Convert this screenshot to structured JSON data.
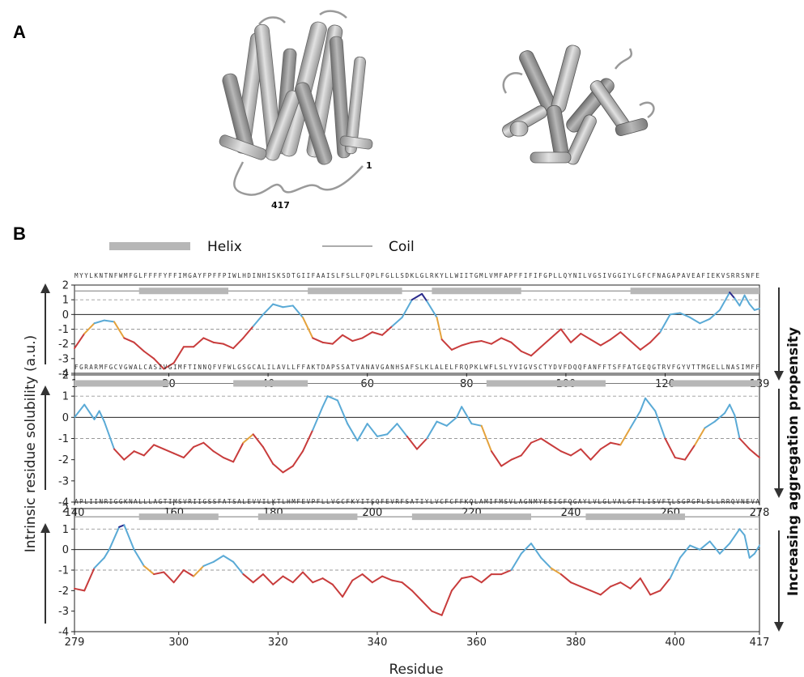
{
  "panel_a": {
    "letter": "A",
    "label_n_term": "1",
    "label_c_term": "417"
  },
  "panel_b": {
    "letter": "B",
    "legend": {
      "helix": "Helix",
      "coil": "Coil"
    },
    "colors": {
      "helix_bar": "#b7b7b7",
      "coil_line": "#7a7a7a",
      "low": "#c83c3c",
      "mid": "#e4a23c",
      "high": "#5aaad6",
      "very_high": "#2a2a8c"
    }
  },
  "chart_data": {
    "type": "line",
    "ylabel": "Intrinsic residue solubility (a.u.)",
    "xlabel": "Residue",
    "right_label": "Increasing aggregation propensity",
    "yticks": [
      -4,
      -3,
      -2,
      -1,
      0,
      1,
      2
    ],
    "ylim": [
      -4,
      2
    ],
    "dashed_lines": [
      -1,
      1
    ],
    "panels": [
      {
        "range": [
          1,
          139
        ],
        "xticks": [
          1,
          20,
          40,
          60,
          80,
          100,
          120,
          139
        ],
        "sequence": "MYYLKNTNFWMFGLFFFFYFFIMGAYFPFFPIWLHDINHISKSDTGIIFAAISLFSLLFQPLFGLLSDKLGLRKYLLWIITGMLVMFAPFFIFIFGPLLQYNILVGSIVGGIYLGFCFNAGAPAVEAFIEKVSRRSNFE",
        "helices": [
          [
            14,
            32
          ],
          [
            48,
            67
          ],
          [
            73,
            91
          ],
          [
            113,
            139
          ]
        ],
        "profile": [
          [
            1,
            -2.3
          ],
          [
            3,
            -1.3
          ],
          [
            5,
            -0.6
          ],
          [
            7,
            -0.4
          ],
          [
            9,
            -0.5
          ],
          [
            11,
            -1.6
          ],
          [
            13,
            -1.9
          ],
          [
            15,
            -2.5
          ],
          [
            17,
            -3.0
          ],
          [
            19,
            -3.7
          ],
          [
            21,
            -3.3
          ],
          [
            23,
            -2.2
          ],
          [
            25,
            -2.2
          ],
          [
            27,
            -1.6
          ],
          [
            29,
            -1.9
          ],
          [
            31,
            -2.0
          ],
          [
            33,
            -2.3
          ],
          [
            35,
            -1.6
          ],
          [
            37,
            -0.8
          ],
          [
            39,
            0.0
          ],
          [
            41,
            0.7
          ],
          [
            43,
            0.5
          ],
          [
            45,
            0.6
          ],
          [
            47,
            -0.2
          ],
          [
            49,
            -1.6
          ],
          [
            51,
            -1.9
          ],
          [
            53,
            -2.0
          ],
          [
            55,
            -1.4
          ],
          [
            57,
            -1.8
          ],
          [
            59,
            -1.6
          ],
          [
            61,
            -1.2
          ],
          [
            63,
            -1.4
          ],
          [
            65,
            -0.8
          ],
          [
            67,
            -0.2
          ],
          [
            69,
            1.0
          ],
          [
            71,
            1.4
          ],
          [
            72,
            0.9
          ],
          [
            74,
            -0.2
          ],
          [
            75,
            -1.7
          ],
          [
            77,
            -2.4
          ],
          [
            79,
            -2.1
          ],
          [
            81,
            -1.9
          ],
          [
            83,
            -1.8
          ],
          [
            85,
            -2.0
          ],
          [
            87,
            -1.6
          ],
          [
            89,
            -1.9
          ],
          [
            91,
            -2.5
          ],
          [
            93,
            -2.8
          ],
          [
            95,
            -2.2
          ],
          [
            97,
            -1.6
          ],
          [
            99,
            -1.0
          ],
          [
            101,
            -1.9
          ],
          [
            103,
            -1.3
          ],
          [
            105,
            -1.7
          ],
          [
            107,
            -2.1
          ],
          [
            109,
            -1.7
          ],
          [
            111,
            -1.2
          ],
          [
            113,
            -1.8
          ],
          [
            115,
            -2.4
          ],
          [
            117,
            -1.9
          ],
          [
            119,
            -1.2
          ],
          [
            121,
            0.0
          ],
          [
            123,
            0.1
          ],
          [
            125,
            -0.2
          ],
          [
            127,
            -0.6
          ],
          [
            129,
            -0.3
          ],
          [
            131,
            0.3
          ],
          [
            133,
            1.5
          ],
          [
            134,
            1.1
          ],
          [
            135,
            0.6
          ],
          [
            136,
            1.3
          ],
          [
            137,
            0.7
          ],
          [
            138,
            0.3
          ],
          [
            139,
            0.4
          ]
        ]
      },
      {
        "range": [
          140,
          278
        ],
        "xticks": [
          140,
          160,
          180,
          200,
          220,
          240,
          260,
          278
        ],
        "sequence": "FGRARMFGCVGWALCASIVGIMFTINNQFVFWLGSGCALILAVLLFFAKTDAPSSATVANAVGANHSAFSLKLALELFRQPKLWFLSLYVIGVSCTYDVFDQQFANFFTSFFATGEQGTRVFGYVTTMGELLNASIMFF",
        "helices": [
          [
            140,
            159
          ],
          [
            172,
            187
          ],
          [
            223,
            247
          ],
          [
            260,
            278
          ]
        ],
        "profile": [
          [
            140,
            0.0
          ],
          [
            142,
            0.6
          ],
          [
            144,
            -0.1
          ],
          [
            145,
            0.3
          ],
          [
            146,
            -0.2
          ],
          [
            148,
            -1.5
          ],
          [
            150,
            -2.0
          ],
          [
            152,
            -1.6
          ],
          [
            154,
            -1.8
          ],
          [
            156,
            -1.3
          ],
          [
            158,
            -1.5
          ],
          [
            160,
            -1.7
          ],
          [
            162,
            -1.9
          ],
          [
            164,
            -1.4
          ],
          [
            166,
            -1.2
          ],
          [
            168,
            -1.6
          ],
          [
            170,
            -1.9
          ],
          [
            172,
            -2.1
          ],
          [
            174,
            -1.2
          ],
          [
            176,
            -0.8
          ],
          [
            178,
            -1.4
          ],
          [
            180,
            -2.2
          ],
          [
            182,
            -2.6
          ],
          [
            184,
            -2.3
          ],
          [
            186,
            -1.6
          ],
          [
            188,
            -0.6
          ],
          [
            190,
            0.5
          ],
          [
            191,
            1.0
          ],
          [
            193,
            0.8
          ],
          [
            195,
            -0.3
          ],
          [
            197,
            -1.1
          ],
          [
            199,
            -0.3
          ],
          [
            201,
            -0.9
          ],
          [
            203,
            -0.8
          ],
          [
            205,
            -0.3
          ],
          [
            207,
            -0.9
          ],
          [
            209,
            -1.5
          ],
          [
            211,
            -1.0
          ],
          [
            213,
            -0.2
          ],
          [
            215,
            -0.4
          ],
          [
            217,
            0.0
          ],
          [
            218,
            0.5
          ],
          [
            220,
            -0.3
          ],
          [
            222,
            -0.4
          ],
          [
            224,
            -1.6
          ],
          [
            226,
            -2.3
          ],
          [
            228,
            -2.0
          ],
          [
            230,
            -1.8
          ],
          [
            232,
            -1.2
          ],
          [
            234,
            -1.0
          ],
          [
            236,
            -1.3
          ],
          [
            238,
            -1.6
          ],
          [
            240,
            -1.8
          ],
          [
            242,
            -1.5
          ],
          [
            244,
            -2.0
          ],
          [
            246,
            -1.5
          ],
          [
            248,
            -1.2
          ],
          [
            250,
            -1.3
          ],
          [
            252,
            -0.5
          ],
          [
            254,
            0.3
          ],
          [
            255,
            0.9
          ],
          [
            257,
            0.3
          ],
          [
            259,
            -1.0
          ],
          [
            261,
            -1.9
          ],
          [
            263,
            -2.0
          ],
          [
            265,
            -1.3
          ],
          [
            267,
            -0.5
          ],
          [
            269,
            -0.2
          ],
          [
            271,
            0.2
          ],
          [
            272,
            0.6
          ],
          [
            273,
            0.1
          ],
          [
            274,
            -1.0
          ],
          [
            276,
            -1.5
          ],
          [
            277,
            -1.7
          ],
          [
            278,
            -1.9
          ]
        ]
      },
      {
        "range": [
          279,
          417
        ],
        "xticks": [
          279,
          300,
          320,
          340,
          360,
          380,
          400,
          417
        ],
        "sequence": "APLIINRIGGKNALLLAGTIMSVRIIGSSFATSALEVVILKTLHMFEVPFLLVGCFKYITSQFEVRFSATIYLVCFCFFKQLAMIFMSVLAGNMYESIGFQGAYLVLGLVALGFTLISVFTLSGPGPLSLLRRQVNEVA",
        "helices": [
          [
            292,
            308
          ],
          [
            316,
            336
          ],
          [
            347,
            371
          ],
          [
            382,
            402
          ]
        ],
        "profile": [
          [
            279,
            -1.9
          ],
          [
            281,
            -2.0
          ],
          [
            283,
            -0.9
          ],
          [
            285,
            -0.4
          ],
          [
            286,
            0.0
          ],
          [
            288,
            1.1
          ],
          [
            289,
            1.2
          ],
          [
            291,
            0.0
          ],
          [
            293,
            -0.8
          ],
          [
            295,
            -1.2
          ],
          [
            297,
            -1.1
          ],
          [
            299,
            -1.6
          ],
          [
            301,
            -1.0
          ],
          [
            303,
            -1.3
          ],
          [
            305,
            -0.8
          ],
          [
            307,
            -0.6
          ],
          [
            309,
            -0.3
          ],
          [
            311,
            -0.6
          ],
          [
            313,
            -1.2
          ],
          [
            315,
            -1.6
          ],
          [
            317,
            -1.2
          ],
          [
            319,
            -1.7
          ],
          [
            321,
            -1.3
          ],
          [
            323,
            -1.6
          ],
          [
            325,
            -1.1
          ],
          [
            327,
            -1.6
          ],
          [
            329,
            -1.4
          ],
          [
            331,
            -1.7
          ],
          [
            333,
            -2.3
          ],
          [
            335,
            -1.5
          ],
          [
            337,
            -1.2
          ],
          [
            339,
            -1.6
          ],
          [
            341,
            -1.3
          ],
          [
            343,
            -1.5
          ],
          [
            345,
            -1.6
          ],
          [
            347,
            -2.0
          ],
          [
            349,
            -2.5
          ],
          [
            351,
            -3.0
          ],
          [
            353,
            -3.2
          ],
          [
            355,
            -2.0
          ],
          [
            357,
            -1.4
          ],
          [
            359,
            -1.3
          ],
          [
            361,
            -1.6
          ],
          [
            363,
            -1.2
          ],
          [
            365,
            -1.2
          ],
          [
            367,
            -1.0
          ],
          [
            369,
            -0.2
          ],
          [
            371,
            0.3
          ],
          [
            373,
            -0.4
          ],
          [
            375,
            -0.9
          ],
          [
            377,
            -1.2
          ],
          [
            379,
            -1.6
          ],
          [
            381,
            -1.8
          ],
          [
            383,
            -2.0
          ],
          [
            385,
            -2.2
          ],
          [
            387,
            -1.8
          ],
          [
            389,
            -1.6
          ],
          [
            391,
            -1.9
          ],
          [
            393,
            -1.4
          ],
          [
            395,
            -2.2
          ],
          [
            397,
            -2.0
          ],
          [
            399,
            -1.4
          ],
          [
            401,
            -0.4
          ],
          [
            403,
            0.2
          ],
          [
            405,
            0.0
          ],
          [
            407,
            0.4
          ],
          [
            409,
            -0.2
          ],
          [
            411,
            0.3
          ],
          [
            413,
            1.0
          ],
          [
            414,
            0.7
          ],
          [
            415,
            -0.4
          ],
          [
            416,
            -0.2
          ],
          [
            417,
            0.2
          ]
        ]
      }
    ]
  }
}
